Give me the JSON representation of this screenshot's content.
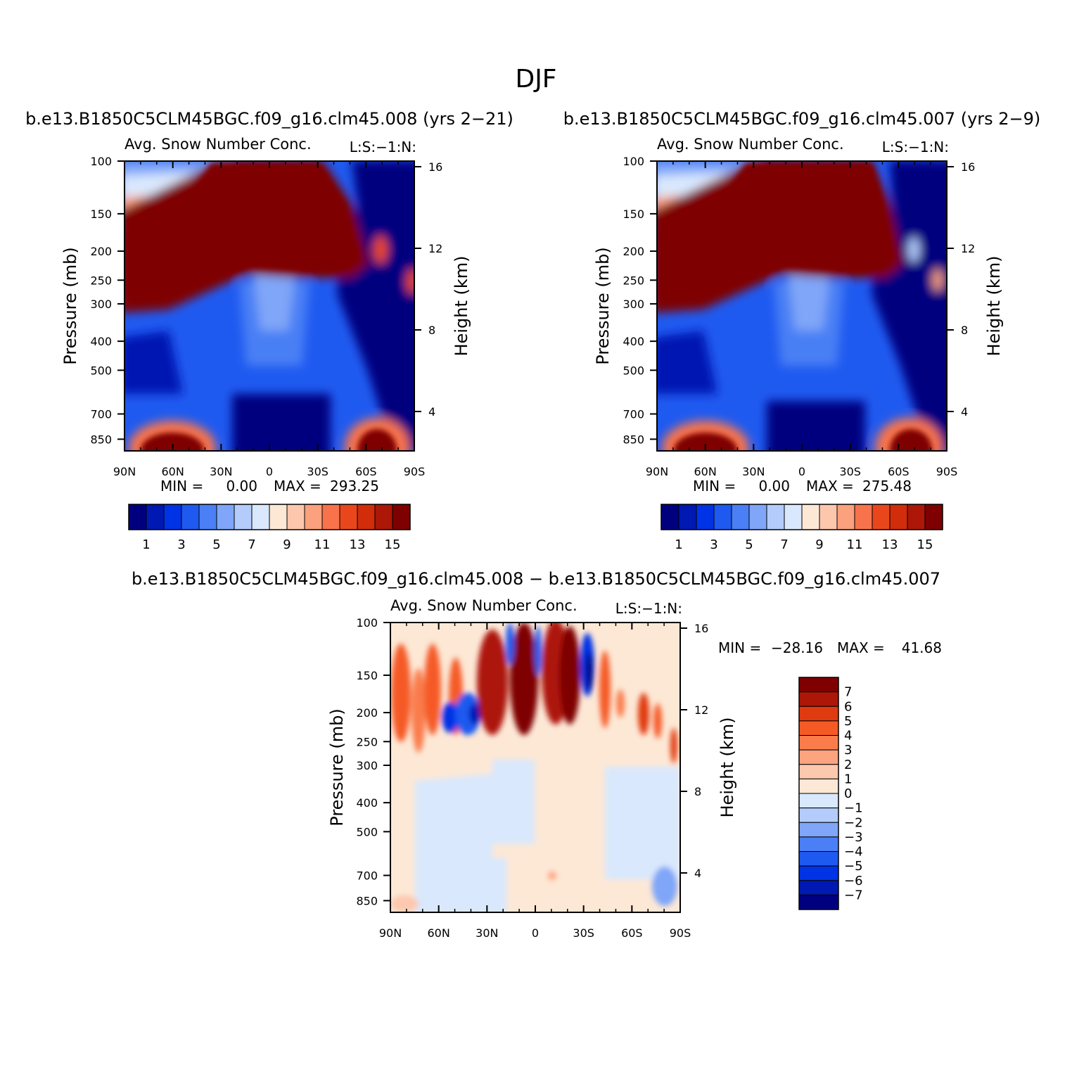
{
  "figure": {
    "title": "DJF"
  },
  "chart_data": [
    {
      "type": "heatmap",
      "title": "b.e13.B1850C5CLM45BGC.f09_g16.clm45.008 (yrs 2−21)",
      "subtitle": "Avg. Snow Number Conc.",
      "corner_label": "L:S:−1:N:",
      "ylabel": "Pressure (mb)",
      "ylabel_right": "Height (km)",
      "x_ticks": [
        "90N",
        "60N",
        "30N",
        "0",
        "30S",
        "60S",
        "90S"
      ],
      "y_ticks": [
        "100",
        "150",
        "200",
        "250",
        "300",
        "400",
        "500",
        "700",
        "850"
      ],
      "y_ticks_right": [
        "16",
        "12",
        "8",
        "4"
      ],
      "stats": {
        "min_label": "MIN =",
        "min": "0.00",
        "max_label": "MAX =",
        "max": "293.25"
      },
      "colorbar": {
        "orientation": "horizontal",
        "labels": [
          "1",
          "3",
          "5",
          "7",
          "9",
          "11",
          "13",
          "15"
        ],
        "colors": [
          "#00007f",
          "#0019b2",
          "#0033e5",
          "#1f5af0",
          "#4a7ff5",
          "#7fa6f8",
          "#b3ccfb",
          "#d9e8fd",
          "#fde8d6",
          "#fcc7ad",
          "#fba17d",
          "#f8734b",
          "#e9471b",
          "#d12d0b",
          "#ad1707",
          "#7f0000"
        ]
      }
    },
    {
      "type": "heatmap",
      "title": "b.e13.B1850C5CLM45BGC.f09_g16.clm45.007 (yrs 2−9)",
      "subtitle": "Avg. Snow Number Conc.",
      "corner_label": "L:S:−1:N:",
      "ylabel": "Pressure (mb)",
      "ylabel_right": "Height (km)",
      "x_ticks": [
        "90N",
        "60N",
        "30N",
        "0",
        "30S",
        "60S",
        "90S"
      ],
      "y_ticks": [
        "100",
        "150",
        "200",
        "250",
        "300",
        "400",
        "500",
        "700",
        "850"
      ],
      "y_ticks_right": [
        "16",
        "12",
        "8",
        "4"
      ],
      "stats": {
        "min_label": "MIN =",
        "min": "0.00",
        "max_label": "MAX =",
        "max": "275.48"
      },
      "colorbar": {
        "orientation": "horizontal",
        "labels": [
          "1",
          "3",
          "5",
          "7",
          "9",
          "11",
          "13",
          "15"
        ],
        "colors": [
          "#00007f",
          "#0019b2",
          "#0033e5",
          "#1f5af0",
          "#4a7ff5",
          "#7fa6f8",
          "#b3ccfb",
          "#d9e8fd",
          "#fde8d6",
          "#fcc7ad",
          "#fba17d",
          "#f8734b",
          "#e9471b",
          "#d12d0b",
          "#ad1707",
          "#7f0000"
        ]
      }
    },
    {
      "type": "heatmap",
      "title": "b.e13.B1850C5CLM45BGC.f09_g16.clm45.008 − b.e13.B1850C5CLM45BGC.f09_g16.clm45.007",
      "subtitle": "Avg. Snow Number Conc.",
      "corner_label": "L:S:−1:N:",
      "ylabel": "Pressure (mb)",
      "ylabel_right": "Height (km)",
      "x_ticks": [
        "90N",
        "60N",
        "30N",
        "0",
        "30S",
        "60S",
        "90S"
      ],
      "y_ticks": [
        "100",
        "150",
        "200",
        "250",
        "300",
        "400",
        "500",
        "700",
        "850"
      ],
      "y_ticks_right": [
        "16",
        "12",
        "8",
        "4"
      ],
      "stats": {
        "min_label": "MIN =",
        "min": "−28.16",
        "max_label": "MAX =",
        "max": "41.68"
      },
      "colorbar": {
        "orientation": "vertical",
        "labels": [
          "7",
          "6",
          "5",
          "4",
          "3",
          "2",
          "1",
          "0",
          "−1",
          "−2",
          "−3",
          "−4",
          "−5",
          "−6",
          "−7"
        ],
        "colors": [
          "#7f0000",
          "#ad1707",
          "#e03a10",
          "#f55a25",
          "#fa7c4b",
          "#fba47f",
          "#fcc8ae",
          "#fde8d6",
          "#d9e8fd",
          "#b3ccfb",
          "#7fa6f8",
          "#4a7ff5",
          "#1f5af0",
          "#0033e5",
          "#0019b2",
          "#00007f"
        ]
      }
    }
  ]
}
